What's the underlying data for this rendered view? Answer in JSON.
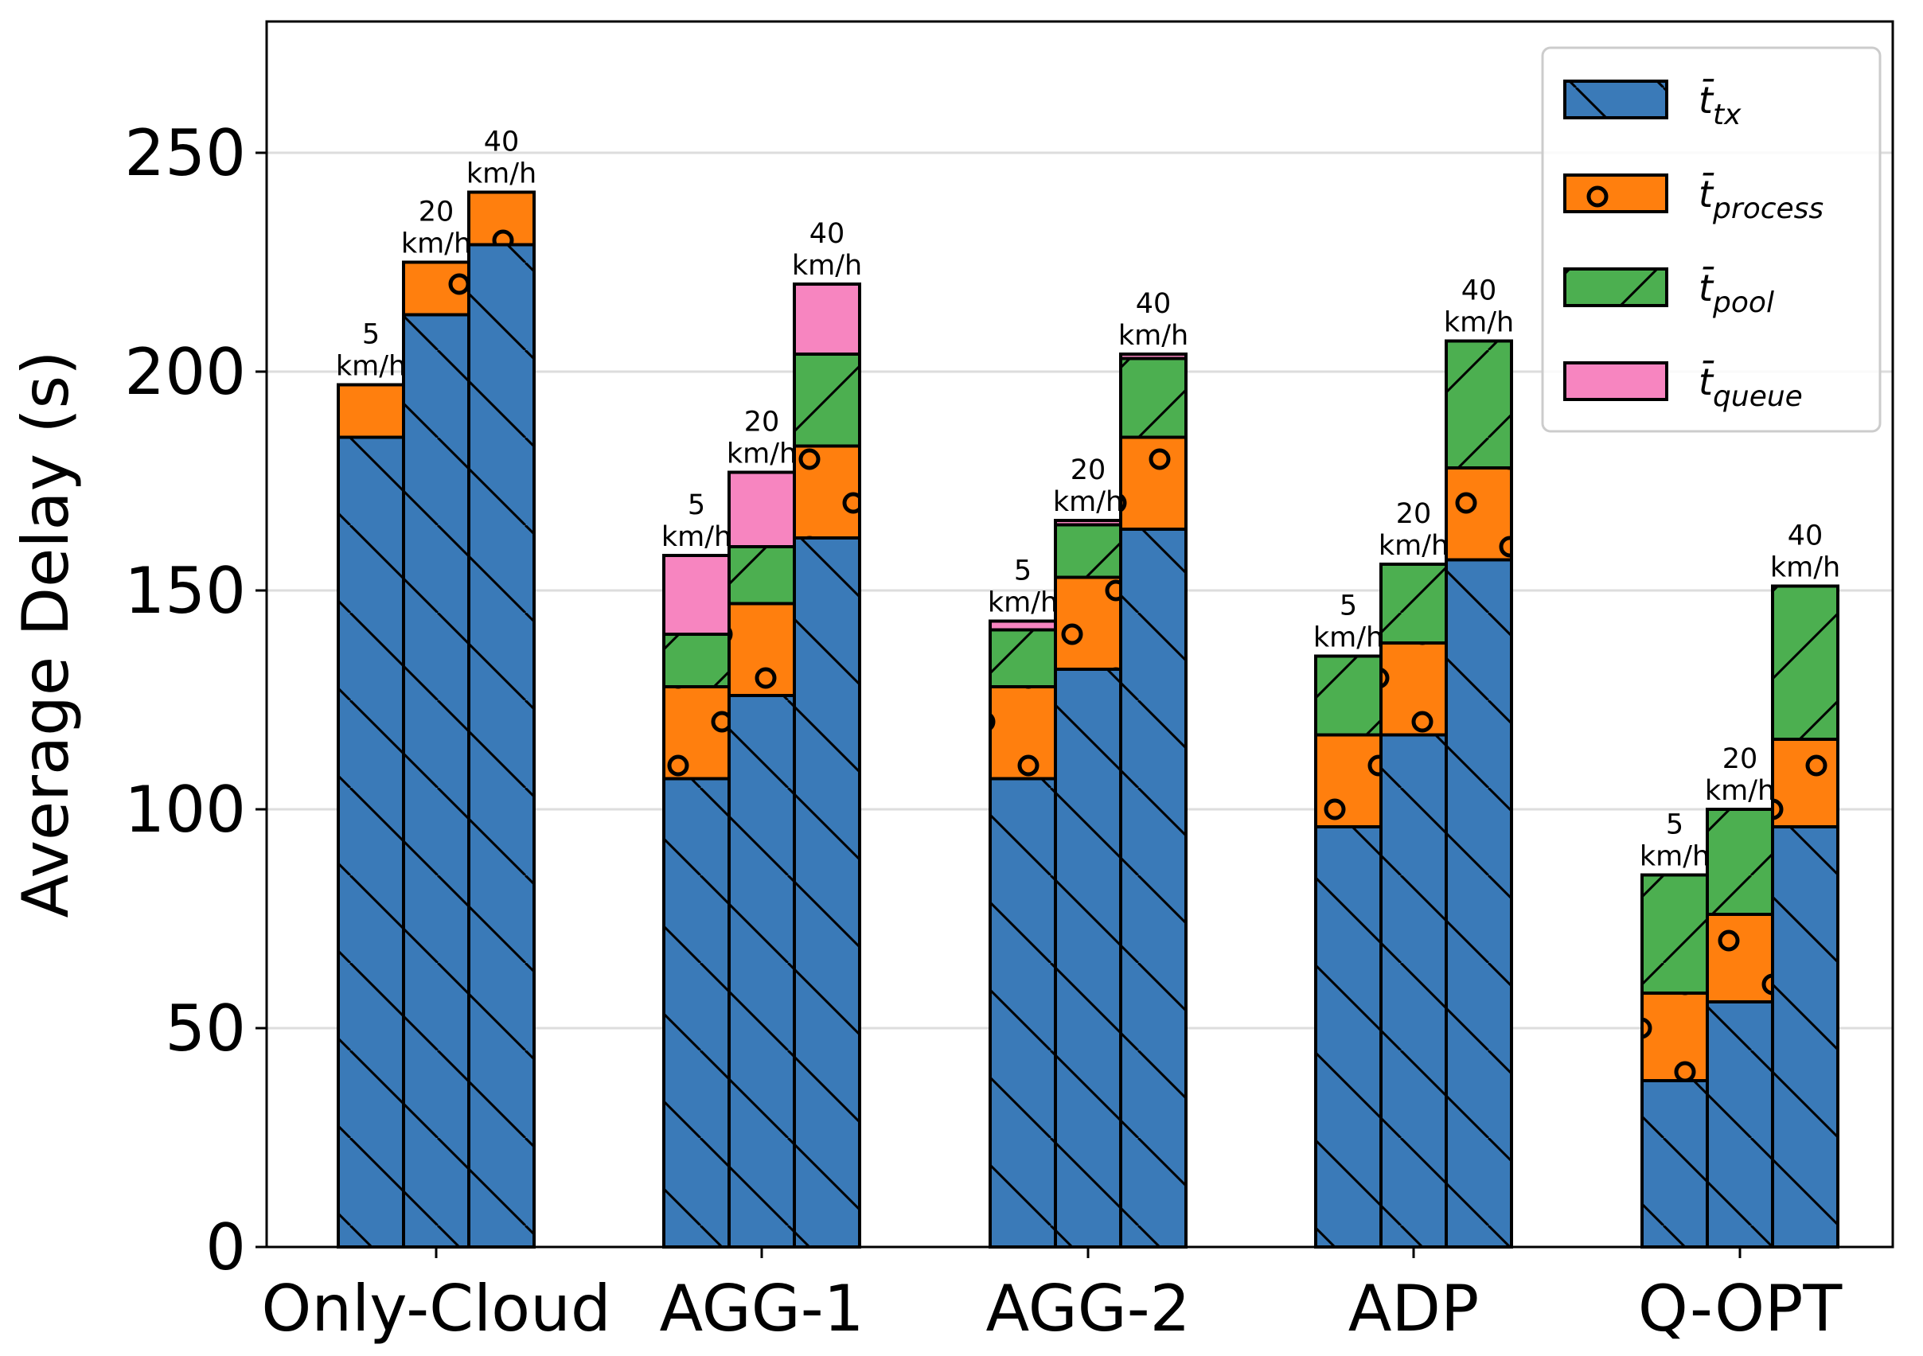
{
  "chart_data": {
    "type": "stacked-grouped-bar",
    "ylabel": "Average Delay (s)",
    "ylim": [
      0,
      280
    ],
    "yticks": [
      0,
      50,
      100,
      150,
      200,
      250
    ],
    "grid": true,
    "legend_position": "top-right",
    "series": [
      {
        "key": "tx",
        "name": "t̄",
        "subscript": "tx",
        "color": "#3a7ab8",
        "hatch": "backslash"
      },
      {
        "key": "process",
        "name": "t̄",
        "subscript": "process",
        "color": "#ff7f0e",
        "hatch": "circles"
      },
      {
        "key": "pool",
        "name": "t̄",
        "subscript": "pool",
        "color": "#4caf50",
        "hatch": "slash"
      },
      {
        "key": "queue",
        "name": "t̄",
        "subscript": "queue",
        "color": "#f785c0",
        "hatch": "none"
      }
    ],
    "speed_labels": [
      {
        "value": "5",
        "unit": "km/h"
      },
      {
        "value": "20",
        "unit": "km/h"
      },
      {
        "value": "40",
        "unit": "km/h"
      }
    ],
    "groups": [
      {
        "name": "Only-Cloud",
        "bars": [
          {
            "tx": 185,
            "process": 12,
            "pool": 0,
            "queue": 0
          },
          {
            "tx": 213,
            "process": 12,
            "pool": 0,
            "queue": 0
          },
          {
            "tx": 229,
            "process": 12,
            "pool": 0,
            "queue": 0
          }
        ]
      },
      {
        "name": "AGG-1",
        "bars": [
          {
            "tx": 107,
            "process": 21,
            "pool": 12,
            "queue": 18
          },
          {
            "tx": 126,
            "process": 21,
            "pool": 13,
            "queue": 17
          },
          {
            "tx": 162,
            "process": 21,
            "pool": 21,
            "queue": 16
          }
        ]
      },
      {
        "name": "AGG-2",
        "bars": [
          {
            "tx": 107,
            "process": 21,
            "pool": 13,
            "queue": 2
          },
          {
            "tx": 132,
            "process": 21,
            "pool": 12,
            "queue": 1
          },
          {
            "tx": 164,
            "process": 21,
            "pool": 18,
            "queue": 1
          }
        ]
      },
      {
        "name": "ADP",
        "bars": [
          {
            "tx": 96,
            "process": 21,
            "pool": 18,
            "queue": 0
          },
          {
            "tx": 117,
            "process": 21,
            "pool": 18,
            "queue": 0
          },
          {
            "tx": 157,
            "process": 21,
            "pool": 29,
            "queue": 0
          }
        ]
      },
      {
        "name": "Q-OPT",
        "bars": [
          {
            "tx": 38,
            "process": 20,
            "pool": 27,
            "queue": 0
          },
          {
            "tx": 56,
            "process": 20,
            "pool": 24,
            "queue": 0
          },
          {
            "tx": 96,
            "process": 20,
            "pool": 35,
            "queue": 0
          }
        ]
      }
    ]
  }
}
